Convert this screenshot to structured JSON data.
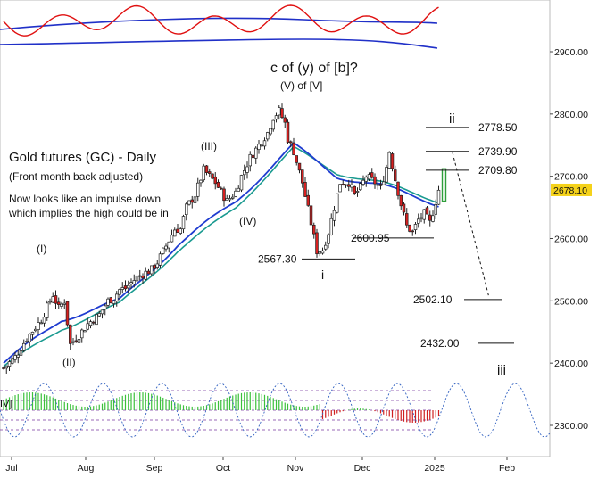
{
  "chart_data": {
    "type": "candlestick",
    "title": "Gold futures (GC) - Daily",
    "subtitle": "(Front month back adjusted)",
    "commentary": [
      "Now looks like an impulse down",
      "which implies the high could be in"
    ],
    "headline": "c of (y) of [b]?",
    "ylim": [
      2280,
      2980
    ],
    "y_ticks": [
      "2300.00",
      "2400.00",
      "2500.00",
      "2600.00",
      "2700.00",
      "2800.00",
      "2900.00"
    ],
    "x_ticks": [
      "Jul",
      "Aug",
      "Sep",
      "Oct",
      "Nov",
      "Dec",
      "2025",
      "Feb"
    ],
    "last_price": "2678.10",
    "colors": {
      "up": "#2e9e3a",
      "down": "#d62020",
      "ma_fast": "#1f3cd0",
      "ma_slow": "#1a9a90",
      "oscillator": "#e01010",
      "cycle": "#3060c0",
      "last_price_bg": "#f5d21a"
    },
    "wave_labels": [
      "(I)",
      "(II)",
      "(III)",
      "(IV)",
      "(V) of [V]",
      "i",
      "ii",
      "iii",
      "IV]"
    ],
    "levels": [
      {
        "label": "2778.50",
        "value": 2778.5
      },
      {
        "label": "2739.90",
        "value": 2739.9
      },
      {
        "label": "2709.80",
        "value": 2709.8
      },
      {
        "label": "2600.95",
        "value": 2600.95
      },
      {
        "label": "2567.30",
        "value": 2567.3
      },
      {
        "label": "2502.10",
        "value": 2502.1
      },
      {
        "label": "2432.00",
        "value": 2432.0
      }
    ],
    "price_path": [
      [
        0,
        2392
      ],
      [
        4,
        2410
      ],
      [
        8,
        2440
      ],
      [
        13,
        2470
      ],
      [
        17,
        2510
      ],
      [
        19,
        2488
      ],
      [
        21,
        2500
      ],
      [
        23,
        2430
      ],
      [
        26,
        2445
      ],
      [
        29,
        2463
      ],
      [
        33,
        2478
      ],
      [
        36,
        2500
      ],
      [
        38,
        2505
      ],
      [
        40,
        2518
      ],
      [
        42,
        2520
      ],
      [
        46,
        2538
      ],
      [
        51,
        2550
      ],
      [
        53,
        2562
      ],
      [
        56,
        2588
      ],
      [
        59,
        2615
      ],
      [
        61,
        2615
      ],
      [
        63,
        2650
      ],
      [
        66,
        2670
      ],
      [
        69,
        2710
      ],
      [
        73,
        2690
      ],
      [
        77,
        2660
      ],
      [
        80,
        2675
      ],
      [
        82,
        2700
      ],
      [
        85,
        2730
      ],
      [
        88,
        2750
      ],
      [
        91,
        2770
      ],
      [
        93,
        2795
      ],
      [
        95,
        2805
      ],
      [
        97,
        2785
      ],
      [
        98,
        2760
      ],
      [
        100,
        2740
      ],
      [
        103,
        2690
      ],
      [
        106,
        2625
      ],
      [
        108,
        2580
      ],
      [
        110,
        2582
      ],
      [
        112,
        2610
      ],
      [
        114,
        2650
      ],
      [
        116,
        2690
      ],
      [
        119,
        2690
      ],
      [
        121,
        2670
      ],
      [
        123,
        2682
      ],
      [
        125,
        2700
      ],
      [
        128,
        2690
      ],
      [
        130,
        2680
      ],
      [
        132,
        2715
      ],
      [
        133,
        2740
      ],
      [
        135,
        2695
      ],
      [
        137,
        2655
      ],
      [
        139,
        2620
      ],
      [
        141,
        2610
      ],
      [
        143,
        2630
      ],
      [
        145,
        2640
      ],
      [
        147,
        2625
      ],
      [
        149,
        2660
      ],
      [
        150,
        2678
      ]
    ],
    "ma_fast_path": [
      [
        0,
        2400
      ],
      [
        20,
        2470
      ],
      [
        40,
        2500
      ],
      [
        60,
        2590
      ],
      [
        80,
        2660
      ],
      [
        100,
        2750
      ],
      [
        115,
        2700
      ],
      [
        130,
        2685
      ],
      [
        150,
        2655
      ]
    ],
    "ma_slow_path": [
      [
        0,
        2395
      ],
      [
        20,
        2455
      ],
      [
        40,
        2495
      ],
      [
        60,
        2580
      ],
      [
        80,
        2650
      ],
      [
        100,
        2745
      ],
      [
        115,
        2705
      ],
      [
        130,
        2690
      ],
      [
        150,
        2660
      ]
    ]
  }
}
